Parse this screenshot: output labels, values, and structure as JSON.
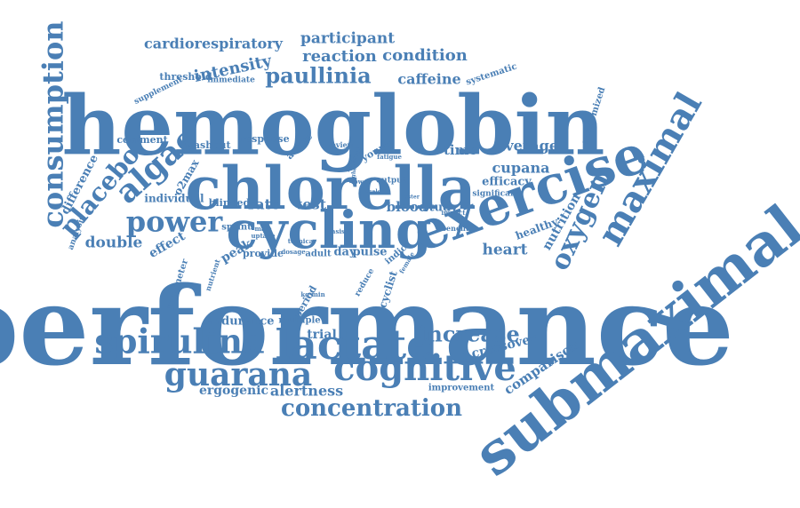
{
  "word_cloud": {
    "color": "#4a7fb5",
    "words": [
      "performance",
      "hemoglobin",
      "submaximal",
      "chlorella",
      "cycling",
      "exercise",
      "consumption",
      "maximal",
      "lactate",
      "cognitive",
      "guarana",
      "spirulina",
      "power",
      "algae",
      "placebo",
      "oxygen",
      "concentration",
      "increase",
      "paullinia",
      "intensity",
      "reaction",
      "condition",
      "caffeine",
      "participant",
      "cardiorespiratory",
      "average",
      "cupana",
      "alertness",
      "comparison",
      "crossover",
      "heart",
      "nutrition",
      "difference",
      "double",
      "effect",
      "healthy",
      "efficacy",
      "time",
      "blood",
      "study",
      "test",
      "rate",
      "ergogenic",
      "endurance",
      "trial",
      "cyclist",
      "peak",
      "day",
      "pulse",
      "indice",
      "provide",
      "blinded",
      "individual",
      "o2max",
      "washout",
      "comment",
      "response",
      "active",
      "young",
      "review",
      "supplement",
      "threshold",
      "immediate",
      "systematic",
      "randomized",
      "significant",
      "output",
      "benefit",
      "multiple",
      "period",
      "adult",
      "improvement",
      "parameter",
      "nutrient",
      "sprint",
      "analysis",
      "reduce",
      "uptake",
      "fatigue",
      "interval",
      "lower",
      "impact",
      "male",
      "female",
      "kg·min",
      "dosage",
      "basis",
      "tecnica",
      "tester",
      "higher",
      "scale"
    ]
  }
}
